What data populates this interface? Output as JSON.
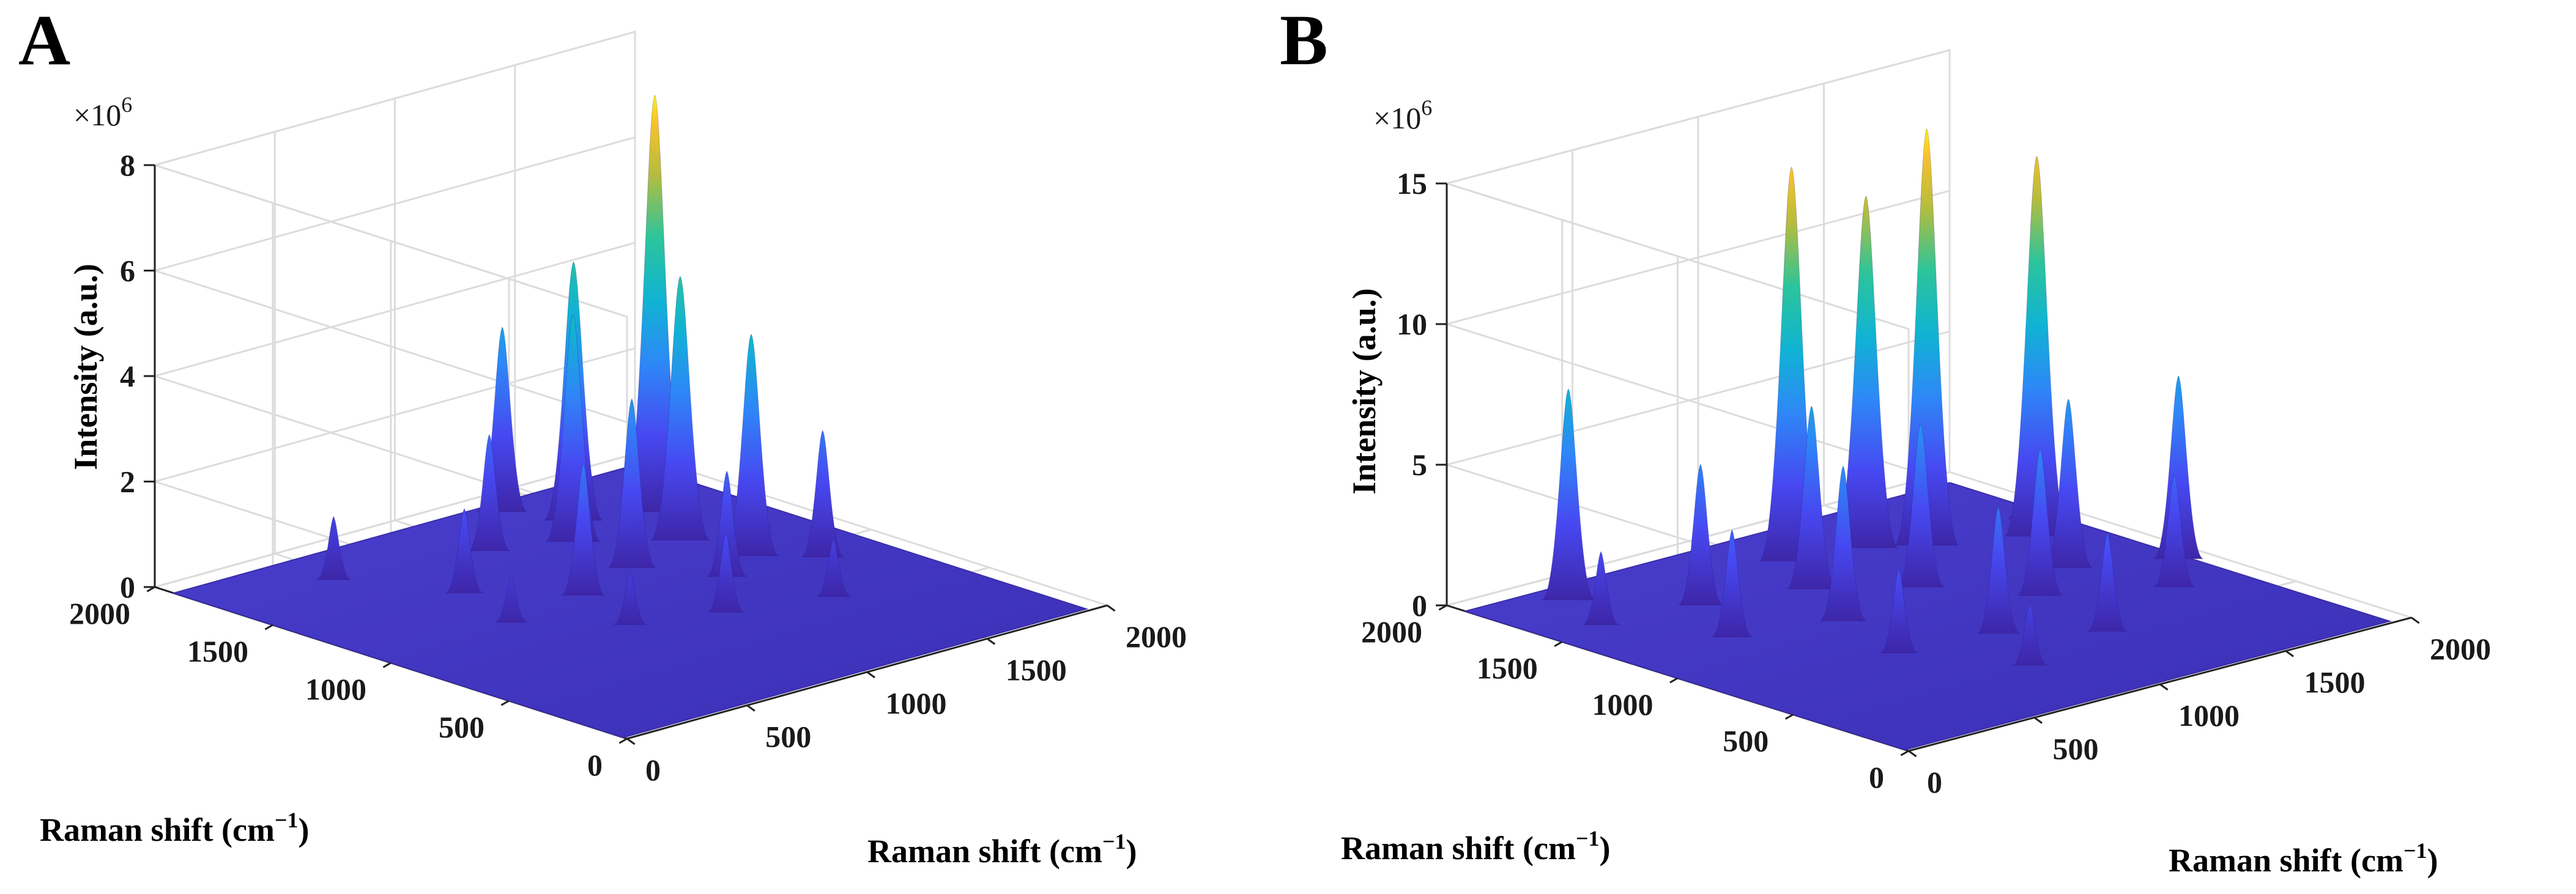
{
  "chart_data": [
    {
      "type": "surface",
      "panel_label": "A",
      "multiplier": {
        "base": "×10",
        "exp": "6"
      },
      "x_ticks": [
        "0",
        "500",
        "1000",
        "1500",
        "2000"
      ],
      "y_ticks": [
        "0",
        "500",
        "1000",
        "1500",
        "2000"
      ],
      "z_ticks": [
        "0",
        "2",
        "4",
        "6",
        "8"
      ],
      "xlim": [
        0,
        2000
      ],
      "ylim": [
        0,
        2000
      ],
      "zlim": [
        0,
        8
      ],
      "xlabel": "Raman shift (cm",
      "ylabel": "Raman shift (cm",
      "label_exp": "−1",
      "label_close": ")",
      "zlabel": "Intensity (a.u.)",
      "colormap": "parula",
      "peaks": [
        {
          "x": 1640,
          "y": 1550,
          "z": 7.9
        },
        {
          "x": 1500,
          "y": 1300,
          "z": 5.0
        },
        {
          "x": 1400,
          "y": 1650,
          "z": 4.9
        },
        {
          "x": 1250,
          "y": 1500,
          "z": 4.3
        },
        {
          "x": 1550,
          "y": 1050,
          "z": 4.2
        },
        {
          "x": 1300,
          "y": 1850,
          "z": 3.5
        },
        {
          "x": 1200,
          "y": 1200,
          "z": 3.2
        },
        {
          "x": 900,
          "y": 1100,
          "z": 2.5
        },
        {
          "x": 1700,
          "y": 900,
          "z": 2.4
        },
        {
          "x": 1000,
          "y": 1600,
          "z": 2.2
        },
        {
          "x": 1350,
          "y": 950,
          "z": 2.0
        },
        {
          "x": 650,
          "y": 1350,
          "z": 1.6
        },
        {
          "x": 1100,
          "y": 700,
          "z": 1.5
        },
        {
          "x": 1750,
          "y": 1250,
          "z": 1.8
        },
        {
          "x": 450,
          "y": 1700,
          "z": 1.2
        },
        {
          "x": 800,
          "y": 800,
          "z": 1.0
        },
        {
          "x": 1450,
          "y": 600,
          "z": 1.1
        },
        {
          "x": 550,
          "y": 1050,
          "z": 0.9
        }
      ]
    },
    {
      "type": "surface",
      "panel_label": "B",
      "multiplier": {
        "base": "×10",
        "exp": "6"
      },
      "x_ticks": [
        "0",
        "500",
        "1000",
        "1500",
        "2000"
      ],
      "y_ticks": [
        "0",
        "500",
        "1000",
        "1500",
        "2000"
      ],
      "z_ticks": [
        "0",
        "5",
        "10",
        "15"
      ],
      "xlim": [
        0,
        2000
      ],
      "ylim": [
        0,
        2000
      ],
      "zlim": [
        0,
        15
      ],
      "xlabel": "Raman shift (cm",
      "ylabel": "Raman shift (cm",
      "label_exp": "−1",
      "label_close": ")",
      "zlabel": "Intensity (a.u.)",
      "colormap": "parula",
      "peaks": [
        {
          "x": 1450,
          "y": 1500,
          "z": 14.8
        },
        {
          "x": 1050,
          "y": 1650,
          "z": 14.0
        },
        {
          "x": 1750,
          "y": 1350,
          "z": 13.5
        },
        {
          "x": 1300,
          "y": 1600,
          "z": 12.5
        },
        {
          "x": 300,
          "y": 1800,
          "z": 7.5
        },
        {
          "x": 1900,
          "y": 900,
          "z": 6.5
        },
        {
          "x": 900,
          "y": 1400,
          "z": 6.5
        },
        {
          "x": 1600,
          "y": 1050,
          "z": 6.0
        },
        {
          "x": 1150,
          "y": 1200,
          "z": 5.8
        },
        {
          "x": 750,
          "y": 1100,
          "z": 5.5
        },
        {
          "x": 1350,
          "y": 900,
          "z": 5.2
        },
        {
          "x": 550,
          "y": 1500,
          "z": 5.0
        },
        {
          "x": 1000,
          "y": 700,
          "z": 4.5
        },
        {
          "x": 1700,
          "y": 700,
          "z": 4.0
        },
        {
          "x": 400,
          "y": 1200,
          "z": 3.8
        },
        {
          "x": 1250,
          "y": 500,
          "z": 3.5
        },
        {
          "x": 650,
          "y": 750,
          "z": 3.0
        },
        {
          "x": 1850,
          "y": 1500,
          "z": 3.2
        },
        {
          "x": 200,
          "y": 1550,
          "z": 2.6
        },
        {
          "x": 850,
          "y": 400,
          "z": 2.2
        }
      ]
    }
  ]
}
